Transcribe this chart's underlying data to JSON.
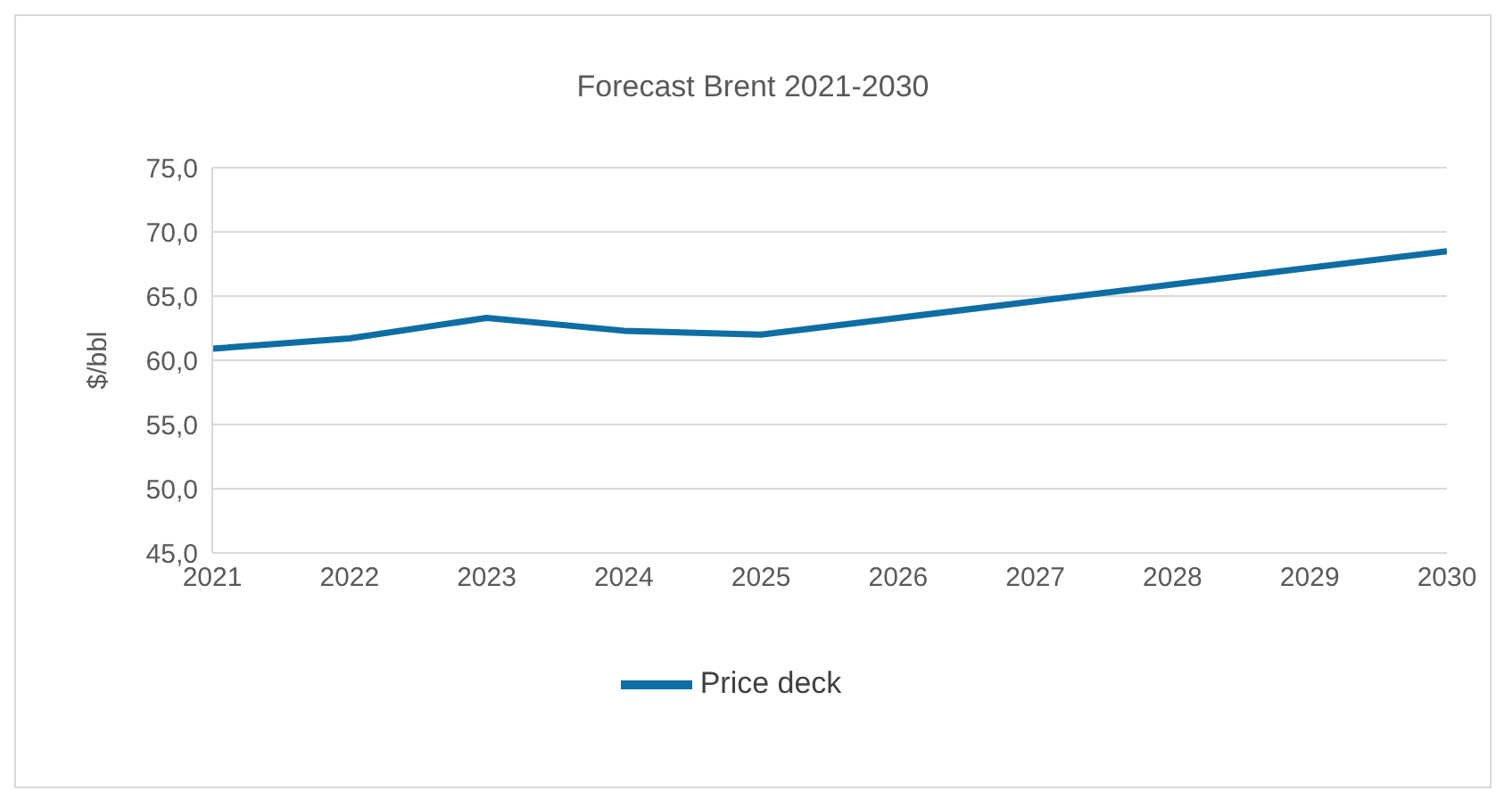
{
  "chart_data": {
    "type": "line",
    "title": "Forecast Brent 2021-2030",
    "ylabel": "$/bbl",
    "x": [
      2021,
      2022,
      2023,
      2024,
      2025,
      2026,
      2027,
      2028,
      2029,
      2030
    ],
    "series": [
      {
        "name": "Price deck",
        "color": "#0e6ea4",
        "values": [
          60.9,
          61.7,
          63.3,
          62.3,
          62.0,
          63.3,
          64.6,
          65.9,
          67.2,
          68.5
        ]
      }
    ],
    "xlim": [
      2021,
      2030
    ],
    "xticks": [
      2021,
      2022,
      2023,
      2024,
      2025,
      2026,
      2027,
      2028,
      2029,
      2030
    ],
    "ylim": [
      45,
      75
    ],
    "yticks": [
      {
        "value": 45,
        "label": "45,0"
      },
      {
        "value": 50,
        "label": "50,0"
      },
      {
        "value": 55,
        "label": "55,0"
      },
      {
        "value": 60,
        "label": "60,0"
      },
      {
        "value": 65,
        "label": "65,0"
      },
      {
        "value": 70,
        "label": "70,0"
      },
      {
        "value": 75,
        "label": "75,0"
      }
    ],
    "grid": "y",
    "legend": "bottom",
    "marker": "none",
    "line_style": "solid"
  }
}
